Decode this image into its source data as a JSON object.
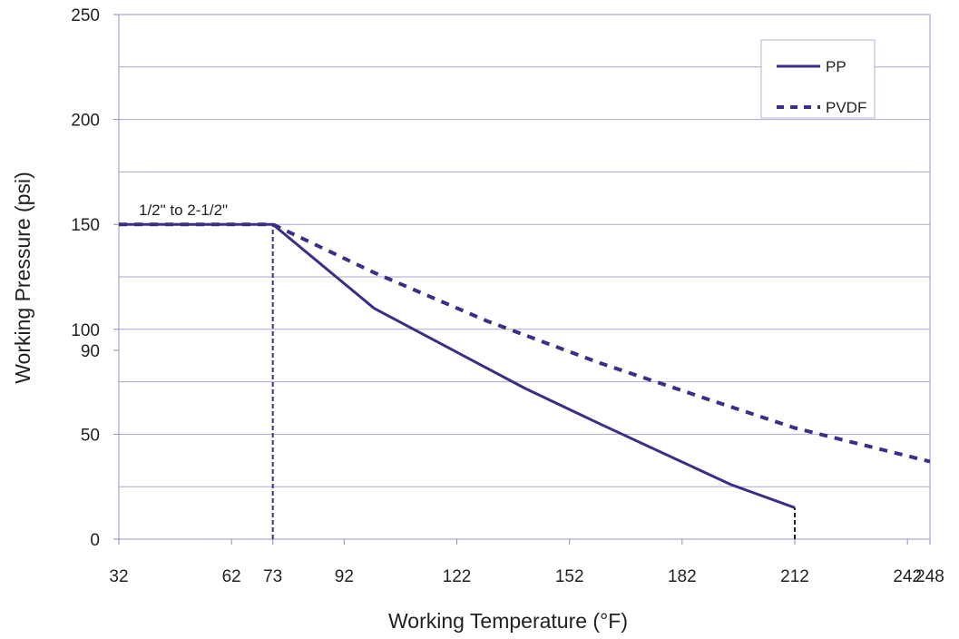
{
  "chart_data": {
    "type": "line",
    "xlabel": "Working Temperature (°F)",
    "ylabel": "Working Pressure (psi)",
    "xlim": [
      32,
      248
    ],
    "ylim": [
      0,
      250
    ],
    "x_ticks": [
      32,
      62,
      73,
      92,
      122,
      152,
      182,
      212,
      242,
      248
    ],
    "y_ticks": [
      0,
      50,
      90,
      100,
      150,
      200,
      250
    ],
    "y_gridlines": [
      25,
      50,
      75,
      100,
      125,
      150,
      175,
      200,
      225,
      250
    ],
    "grid": true,
    "legend_position": "top-right",
    "series": [
      {
        "name": "PP",
        "style": "solid",
        "color": "#3c2d86",
        "x": [
          32,
          73,
          100,
          140,
          160,
          195,
          212
        ],
        "y": [
          150,
          150,
          110,
          72,
          55,
          26,
          15
        ]
      },
      {
        "name": "PVDF",
        "style": "dashed",
        "color": "#3c2d86",
        "x": [
          32,
          73,
          100,
          130,
          160,
          190,
          212,
          248
        ],
        "y": [
          150,
          150,
          127,
          104,
          84,
          66,
          53,
          37
        ]
      }
    ],
    "annotations": [
      {
        "text": "1/2\" to 2-1/2\"",
        "x": 32,
        "y": 150
      }
    ],
    "reference_lines": [
      {
        "x": 73,
        "y_from": 0,
        "y_to": 150,
        "color": "#3c2d86"
      },
      {
        "x": 212,
        "y_from": 0,
        "y_to": 15,
        "color": "#231f20"
      }
    ]
  }
}
